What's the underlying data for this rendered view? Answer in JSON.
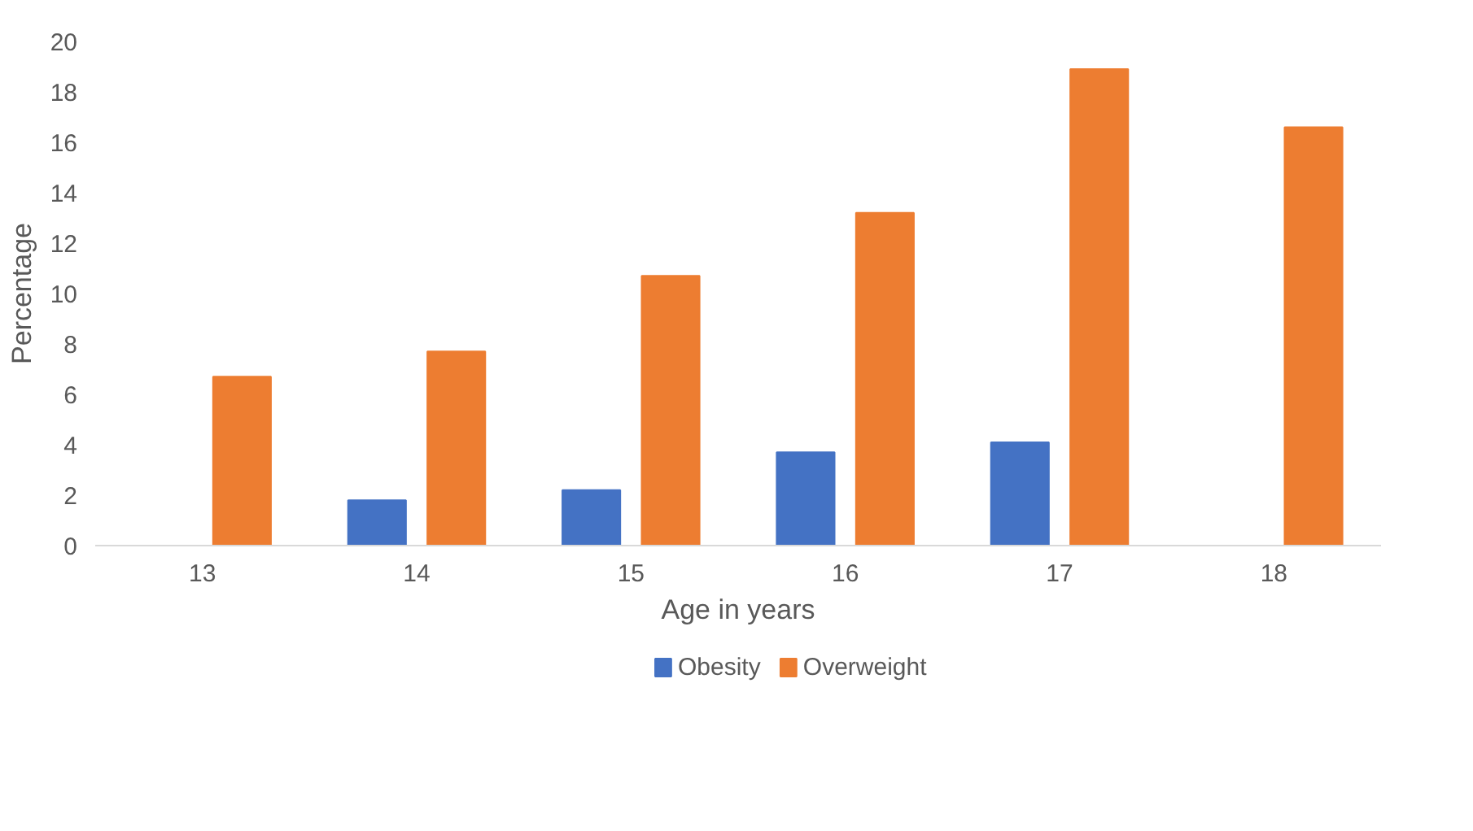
{
  "chart_data": {
    "type": "bar",
    "xlabel": "Age in years",
    "ylabel": "Percentage",
    "categories": [
      "13",
      "14",
      "15",
      "16",
      "17",
      "18"
    ],
    "series": [
      {
        "name": "Obesity",
        "color": "#4472c4",
        "values": [
          null,
          1.8,
          2.2,
          3.7,
          4.1,
          null
        ]
      },
      {
        "name": "Overweight",
        "color": "#ed7d31",
        "values": [
          6.7,
          7.7,
          10.7,
          13.2,
          18.9,
          16.6
        ]
      }
    ],
    "ylim": [
      0,
      20
    ],
    "yticks": [
      0,
      2,
      4,
      6,
      8,
      10,
      12,
      14,
      16,
      18,
      20
    ],
    "grid": false,
    "legend": "bottom"
  }
}
